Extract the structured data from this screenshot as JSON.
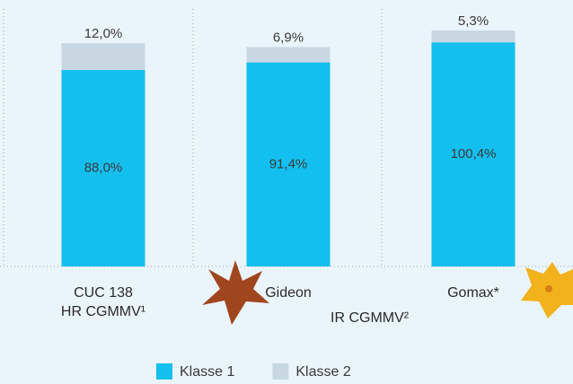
{
  "chart_data": {
    "type": "stacked_bar",
    "categories": [
      "CUC 138\nHR CGMMV¹",
      "Gideon",
      "Gomax*"
    ],
    "series": [
      {
        "name": "Klasse 1",
        "color": "#13bfee",
        "values": [
          88.0,
          91.4,
          100.4
        ],
        "value_labels": [
          "88,0%",
          "91,4%",
          "100,4%"
        ]
      },
      {
        "name": "Klasse 2",
        "color": "#c9d7e3",
        "values": [
          12.0,
          6.9,
          5.3
        ],
        "value_labels": [
          "12,0%",
          "6,9%",
          "5,3%"
        ]
      }
    ],
    "annotations": [
      "IR CGMMV²"
    ]
  }
}
